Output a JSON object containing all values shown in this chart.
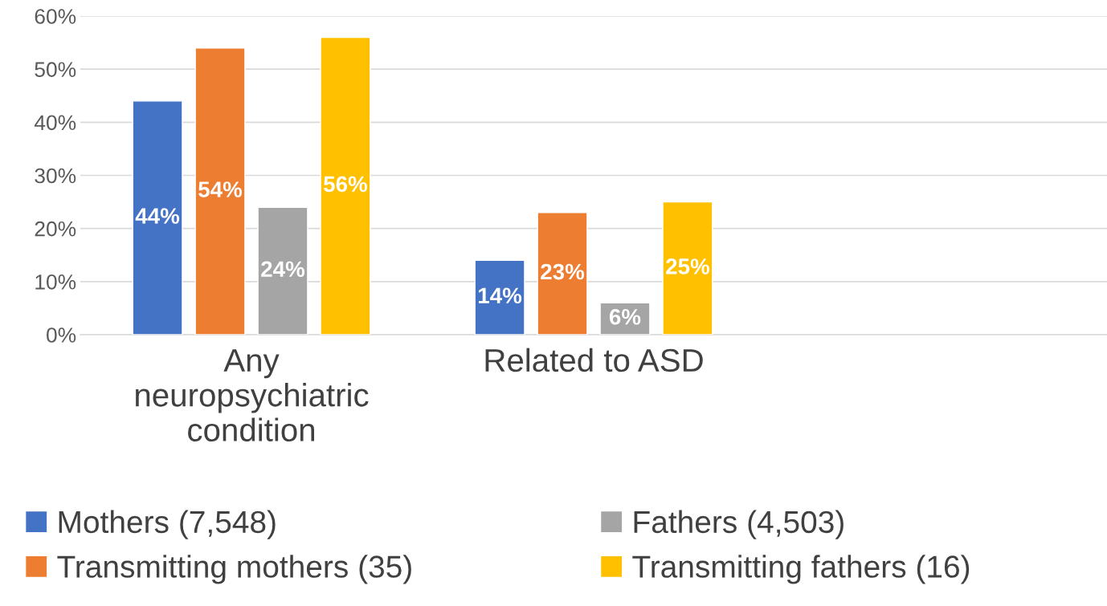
{
  "chart_data": {
    "type": "bar",
    "categories": [
      "Any neuropsychiatric condition",
      "Related to ASD",
      null
    ],
    "series": [
      {
        "name": "Mothers (7,548)",
        "color": "#4472c4",
        "values": [
          44,
          14,
          null
        ],
        "value_labels": [
          "44%",
          "14%",
          null
        ]
      },
      {
        "name": "Transmitting mothers (35)",
        "color": "#ed7d31",
        "values": [
          54,
          23,
          null
        ],
        "value_labels": [
          "54%",
          "23%",
          null
        ]
      },
      {
        "name": "Fathers (4,503)",
        "color": "#a5a5a5",
        "values": [
          24,
          6,
          null
        ],
        "value_labels": [
          "24%",
          "6%",
          null
        ]
      },
      {
        "name": "Transmitting fathers (16)",
        "color": "#ffc000",
        "values": [
          56,
          25,
          null
        ],
        "value_labels": [
          "56%",
          "25%",
          null
        ]
      }
    ],
    "ylim": [
      0,
      60
    ],
    "yticks": [
      {
        "value": 0,
        "label": "0%"
      },
      {
        "value": 10,
        "label": "10%"
      },
      {
        "value": 20,
        "label": "20%"
      },
      {
        "value": 30,
        "label": "30%"
      },
      {
        "value": 40,
        "label": "40%"
      },
      {
        "value": 50,
        "label": "50%"
      },
      {
        "value": 60,
        "label": "60%"
      }
    ],
    "grid": "y",
    "legend": "bottom"
  }
}
